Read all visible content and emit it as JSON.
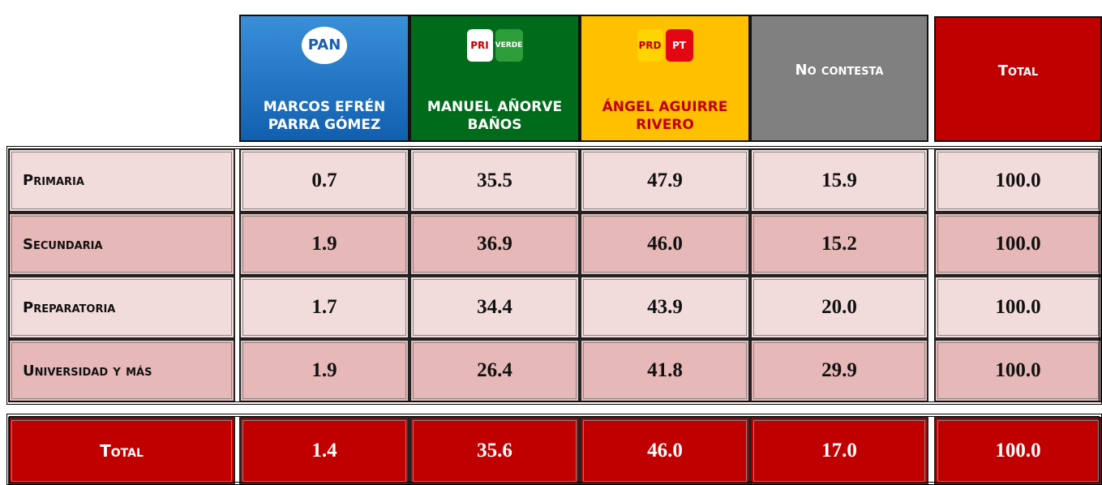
{
  "header": {
    "columns": [
      {
        "label": "MARCOS EFRÉN PARRA GÓMEZ",
        "logo": [
          "PAN"
        ]
      },
      {
        "label": "MANUEL AÑORVE BAÑOS",
        "logo": [
          "PRI",
          "VERDE"
        ]
      },
      {
        "label": "ÁNGEL AGUIRRE RIVERO",
        "logo": [
          "PRD",
          "PT"
        ]
      },
      {
        "label": "No contesta"
      },
      {
        "label": "Total"
      }
    ]
  },
  "rows": [
    {
      "label": "Primaria",
      "values": [
        "0.7",
        "35.5",
        "47.9",
        "15.9",
        "100.0"
      ]
    },
    {
      "label": "Secundaria",
      "values": [
        "1.9",
        "36.9",
        "46.0",
        "15.2",
        "100.0"
      ]
    },
    {
      "label": "Preparatoria",
      "values": [
        "1.7",
        "34.4",
        "43.9",
        "20.0",
        "100.0"
      ]
    },
    {
      "label": "Universidad y más",
      "values": [
        "1.9",
        "26.4",
        "41.8",
        "29.9",
        "100.0"
      ]
    }
  ],
  "total": {
    "label": "Total",
    "values": [
      "1.4",
      "35.6",
      "46.0",
      "17.0",
      "100.0"
    ]
  }
}
